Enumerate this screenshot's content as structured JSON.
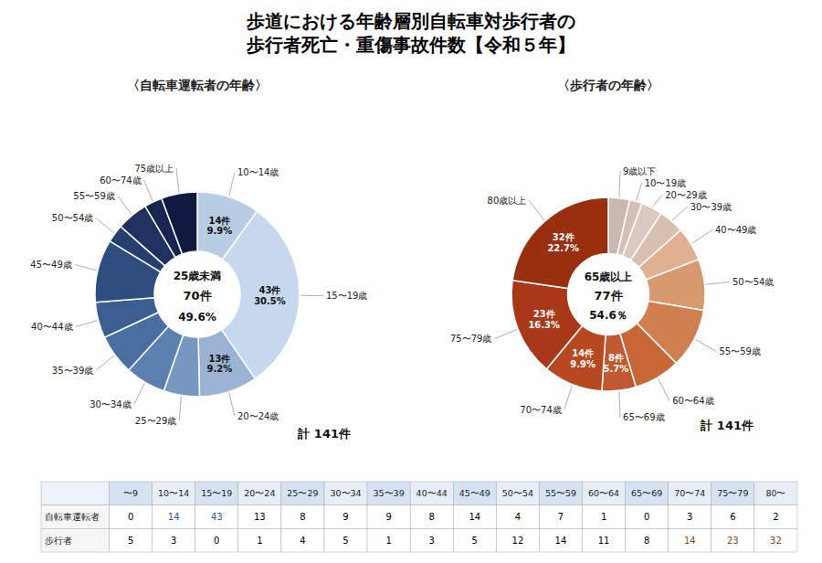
{
  "chart_data": [
    {
      "type": "pie",
      "title": [
        "歩道における年齢層別自転車対歩行者の",
        "歩行者死亡・重傷事故件数【令和５年】"
      ],
      "subtitle": "〈自転車運転者の年齢〉",
      "categories": [
        "10〜14歳",
        "15〜19歳",
        "20〜24歳",
        "25〜29歳",
        "30〜34歳",
        "35〜39歳",
        "40〜44歳",
        "45〜49歳",
        "50〜54歳",
        "55〜59歳",
        "60〜74歳",
        "75歳以上"
      ],
      "values": [
        14,
        43,
        13,
        8,
        9,
        9,
        8,
        14,
        4,
        7,
        4,
        8
      ],
      "colors": [
        "#b8cce4",
        "#c5d8ee",
        "#9ab3d5",
        "#7698c0",
        "#5b80b0",
        "#4a6ea0",
        "#3d5e90",
        "#2e4e80",
        "#253f70",
        "#1e3260",
        "#172650",
        "#101a40"
      ],
      "value_labels": [
        "14件\n9.9%",
        "43件\n30.5%",
        "13件\n9.2%",
        null,
        null,
        null,
        null,
        null,
        null,
        null,
        null,
        null
      ],
      "data_labels": true,
      "annotations": [
        "25歳未満",
        "70件",
        "49.6%",
        "計 141件"
      ]
    },
    {
      "type": "pie",
      "subtitle": "〈歩行者の年齢〉",
      "categories": [
        "9歳以下",
        "10〜19歳",
        "20〜29歳",
        "30〜39歳",
        "40〜49歳",
        "50〜54歳",
        "55〜59歳",
        "60〜64歳",
        "65〜69歳",
        "70〜74歳",
        "75〜79歳",
        "80歳以上"
      ],
      "values": [
        5,
        3,
        5,
        6,
        8,
        12,
        14,
        11,
        8,
        14,
        23,
        32
      ],
      "colors": [
        "#c8b8b0",
        "#d4c0b8",
        "#dcc8c0",
        "#d8c0b0",
        "#e0b090",
        "#d89870",
        "#d08050",
        "#c86838",
        "#c05830",
        "#b84820",
        "#a83818",
        "#983010"
      ],
      "value_labels": [
        null,
        null,
        null,
        null,
        null,
        null,
        null,
        null,
        "8件\n5.7%",
        "14件\n9.9%",
        "23件\n16.3%",
        "32件\n22.7%"
      ],
      "data_labels": true,
      "annotations": [
        "65歳以上",
        "77件",
        "54.6％",
        "計 141件"
      ]
    },
    {
      "type": "table",
      "categories": [
        "〜9",
        "10〜14",
        "15〜19",
        "20〜24",
        "25〜29",
        "30〜34",
        "35〜39",
        "40〜44",
        "45〜49",
        "50〜54",
        "55〜59",
        "60〜64",
        "65〜69",
        "70〜74",
        "75〜79",
        "80〜"
      ],
      "series": [
        {
          "name": "自転車運転者",
          "values": [
            0,
            14,
            43,
            13,
            8,
            9,
            9,
            8,
            14,
            4,
            7,
            1,
            0,
            3,
            6,
            2
          ],
          "colors": [
            "#000000",
            "#2255aa",
            "#2255aa",
            "#000000",
            "#000000",
            "#000000",
            "#000000",
            "#000000",
            "#000000",
            "#000000",
            "#000000",
            "#000000",
            "#000000",
            "#000000",
            "#000000",
            "#000000"
          ]
        },
        {
          "name": "歩行者",
          "values": [
            5,
            3,
            0,
            1,
            4,
            5,
            1,
            3,
            5,
            12,
            14,
            11,
            8,
            14,
            23,
            32
          ],
          "colors": [
            "#000000",
            "#000000",
            "#000000",
            "#000000",
            "#000000",
            "#000000",
            "#000000",
            "#000000",
            "#000000",
            "#000000",
            "#000000",
            "#000000",
            "#000000",
            "#884422",
            "#884422",
            "#884422"
          ]
        }
      ]
    }
  ]
}
